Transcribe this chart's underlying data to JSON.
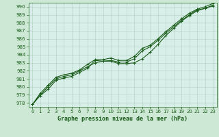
{
  "title": "Graphe pression niveau de la mer (hPa)",
  "background_color": "#cce8ef",
  "plot_bg_color": "#d6f0f0",
  "grid_color": "#a0c8c8",
  "line_color": "#1a5c1a",
  "xlim": [
    -0.5,
    23.5
  ],
  "ylim": [
    977.5,
    990.5
  ],
  "yticks": [
    978,
    979,
    980,
    981,
    982,
    983,
    984,
    985,
    986,
    987,
    988,
    989,
    990
  ],
  "xticks": [
    0,
    1,
    2,
    3,
    4,
    5,
    6,
    7,
    8,
    9,
    10,
    11,
    12,
    13,
    14,
    15,
    16,
    17,
    18,
    19,
    20,
    21,
    22,
    23
  ],
  "line1": [
    977.8,
    978.9,
    979.7,
    980.8,
    981.1,
    981.3,
    981.8,
    982.3,
    983.3,
    983.2,
    983.2,
    982.9,
    982.9,
    983.0,
    983.5,
    984.3,
    985.3,
    986.4,
    987.3,
    988.2,
    988.9,
    989.5,
    989.8,
    990.2
  ],
  "line2": [
    977.8,
    979.0,
    980.0,
    981.0,
    981.3,
    981.5,
    982.0,
    982.5,
    983.0,
    983.2,
    983.3,
    983.1,
    983.1,
    983.5,
    984.5,
    985.0,
    985.8,
    986.7,
    987.5,
    988.3,
    989.0,
    989.6,
    989.8,
    990.1
  ],
  "line3": [
    977.8,
    979.2,
    980.2,
    981.2,
    981.5,
    981.7,
    982.1,
    982.8,
    983.4,
    983.4,
    983.6,
    983.3,
    983.3,
    983.8,
    984.8,
    985.2,
    986.0,
    986.9,
    987.7,
    988.5,
    989.2,
    989.7,
    990.0,
    990.4
  ],
  "tick_fontsize": 5.0,
  "label_fontsize": 6.0,
  "linewidth": 0.8,
  "markersize": 3.0
}
